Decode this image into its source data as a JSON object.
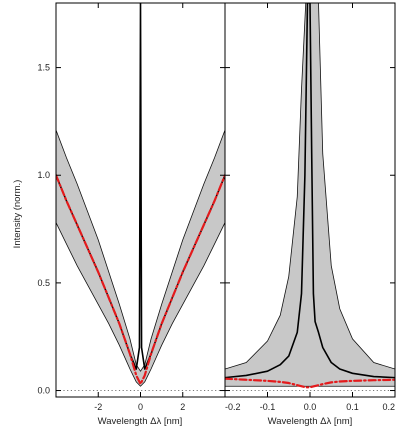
{
  "chart_data": [
    {
      "type": "line",
      "panel": "left",
      "xlabel": "Wavelength Δλ [nm]",
      "ylabel": "Intensity (norm.)",
      "xlim": [
        -4.0,
        4.0
      ],
      "ylim": [
        -0.03,
        1.8
      ],
      "xticks": [
        -2,
        0,
        2
      ],
      "xtick_labels": [
        "-2",
        "0",
        "2"
      ],
      "yticks": [
        0.0,
        0.5,
        1.0,
        1.5
      ],
      "ytick_labels": [
        "0.0",
        "0.5",
        "1.0",
        "1.5"
      ],
      "grid": false,
      "reference_line": {
        "y": 0.0,
        "style": "dotted"
      },
      "band": {
        "x": [
          -4.0,
          -3.5,
          -3.0,
          -2.5,
          -2.0,
          -1.5,
          -1.0,
          -0.5,
          -0.2,
          0.0,
          0.2,
          0.5,
          1.0,
          1.5,
          2.0,
          2.5,
          3.0,
          3.5,
          4.0
        ],
        "lower": [
          0.78,
          0.68,
          0.58,
          0.49,
          0.4,
          0.31,
          0.21,
          0.1,
          0.04,
          0.02,
          0.04,
          0.1,
          0.21,
          0.31,
          0.4,
          0.49,
          0.58,
          0.68,
          0.78
        ],
        "upper": [
          1.21,
          1.08,
          0.96,
          0.83,
          0.7,
          0.55,
          0.4,
          0.24,
          0.12,
          0.09,
          0.12,
          0.24,
          0.4,
          0.55,
          0.7,
          0.83,
          0.96,
          1.08,
          1.21
        ]
      },
      "series": [
        {
          "style": "solid",
          "color": "#000000",
          "x": [
            -4.0,
            -3.5,
            -3.0,
            -2.5,
            -2.0,
            -1.5,
            -1.0,
            -0.5,
            -0.2,
            -0.05,
            0.0,
            0.05,
            0.2,
            0.5,
            1.0,
            1.5,
            2.0,
            2.5,
            3.0,
            3.5,
            4.0
          ],
          "y": [
            1.0,
            0.88,
            0.77,
            0.66,
            0.55,
            0.43,
            0.31,
            0.17,
            0.1,
            0.2,
            1.8,
            0.2,
            0.1,
            0.17,
            0.31,
            0.43,
            0.55,
            0.66,
            0.77,
            0.88,
            1.0
          ]
        },
        {
          "style": "dash-dot",
          "color": "#e41a1c",
          "x": [
            -4.0,
            -3.5,
            -3.0,
            -2.5,
            -2.0,
            -1.5,
            -1.0,
            -0.5,
            -0.2,
            0.0,
            0.2,
            0.5,
            1.0,
            1.5,
            2.0,
            2.5,
            3.0,
            3.5,
            4.0
          ],
          "y": [
            1.0,
            0.88,
            0.77,
            0.66,
            0.55,
            0.43,
            0.31,
            0.17,
            0.07,
            0.03,
            0.07,
            0.17,
            0.31,
            0.43,
            0.55,
            0.66,
            0.77,
            0.88,
            1.0
          ]
        }
      ]
    },
    {
      "type": "line",
      "panel": "right",
      "xlabel": "Wavelength Δλ [nm]",
      "ylabel": "",
      "xlim": [
        -0.2,
        0.2
      ],
      "ylim": [
        -0.03,
        1.8
      ],
      "xticks": [
        -0.2,
        -0.1,
        0.0,
        0.1,
        0.2
      ],
      "xtick_labels": [
        "-0.2",
        "-0.1",
        "0.0",
        "0.1",
        "0.2"
      ],
      "grid": false,
      "reference_line": {
        "y": 0.0,
        "style": "dotted"
      },
      "band": {
        "x": [
          -0.2,
          -0.15,
          -0.1,
          -0.07,
          -0.05,
          -0.03,
          -0.02,
          -0.01,
          0.0,
          0.01,
          0.02,
          0.03,
          0.05,
          0.07,
          0.1,
          0.15,
          0.2
        ],
        "lower": [
          0.02,
          0.02,
          0.02,
          0.02,
          0.02,
          0.02,
          0.02,
          0.02,
          0.02,
          0.02,
          0.02,
          0.02,
          0.02,
          0.02,
          0.02,
          0.02,
          0.02
        ],
        "upper": [
          0.1,
          0.13,
          0.23,
          0.35,
          0.53,
          0.9,
          1.4,
          1.8,
          1.8,
          1.8,
          1.8,
          1.1,
          0.58,
          0.38,
          0.24,
          0.13,
          0.1
        ]
      },
      "series": [
        {
          "style": "solid",
          "color": "#000000",
          "x": [
            -0.2,
            -0.15,
            -0.1,
            -0.07,
            -0.05,
            -0.03,
            -0.02,
            -0.012,
            -0.006,
            0.0,
            0.004,
            0.008,
            0.012,
            0.02,
            0.03,
            0.05,
            0.07,
            0.1,
            0.15,
            0.2
          ],
          "y": [
            0.06,
            0.07,
            0.09,
            0.12,
            0.16,
            0.27,
            0.45,
            1.0,
            1.8,
            1.8,
            1.1,
            0.45,
            0.32,
            0.27,
            0.2,
            0.13,
            0.1,
            0.08,
            0.065,
            0.06
          ]
        },
        {
          "style": "dash-dot",
          "color": "#e41a1c",
          "x": [
            -0.2,
            -0.15,
            -0.1,
            -0.07,
            -0.05,
            -0.03,
            -0.01,
            0.0,
            0.01,
            0.03,
            0.05,
            0.07,
            0.1,
            0.15,
            0.2
          ],
          "y": [
            0.055,
            0.05,
            0.045,
            0.04,
            0.035,
            0.025,
            0.015,
            0.015,
            0.02,
            0.03,
            0.038,
            0.042,
            0.045,
            0.048,
            0.05
          ]
        }
      ]
    }
  ]
}
